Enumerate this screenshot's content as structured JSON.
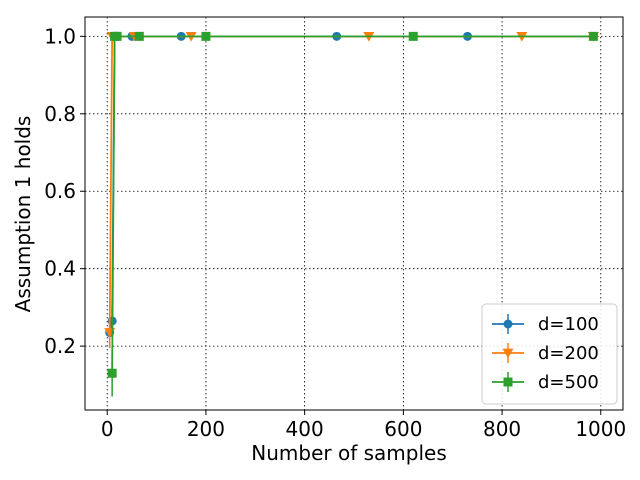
{
  "chart_data": {
    "type": "line",
    "title": "",
    "xlabel": "Number of samples",
    "ylabel": "Assumption 1 holds",
    "xlim": [
      -45,
      1045
    ],
    "ylim": [
      0.035,
      1.05
    ],
    "xticks": [
      0,
      200,
      400,
      600,
      800,
      1000
    ],
    "xtick_labels": [
      "0",
      "200",
      "400",
      "600",
      "800",
      "1000"
    ],
    "yticks": [
      0.2,
      0.4,
      0.6,
      0.8,
      1.0
    ],
    "ytick_labels": [
      "0.2",
      "0.4",
      "0.6",
      "0.8",
      "1.0"
    ],
    "grid": true,
    "legend_position": "lower-right",
    "series": [
      {
        "name": "d=100",
        "color": "#1f77b4",
        "marker": "circle",
        "x": [
          5,
          10,
          15,
          50,
          150,
          465,
          730,
          985
        ],
        "y": [
          0.235,
          0.265,
          1.0,
          1.0,
          1.0,
          1.0,
          1.0,
          1.0
        ],
        "yerr": [
          0.04,
          0.04,
          0,
          0,
          0,
          0,
          0,
          0
        ]
      },
      {
        "name": "d=200",
        "color": "#ff7f0e",
        "marker": "triangle-down",
        "x": [
          5,
          10,
          15,
          55,
          170,
          530,
          840,
          985
        ],
        "y": [
          0.235,
          1.0,
          1.0,
          1.0,
          1.0,
          1.0,
          1.0,
          1.0
        ],
        "yerr": [
          0.04,
          0,
          0,
          0,
          0,
          0,
          0,
          0
        ]
      },
      {
        "name": "d=500",
        "color": "#2ca02c",
        "marker": "square",
        "x": [
          10,
          15,
          20,
          65,
          200,
          620,
          985
        ],
        "y": [
          0.13,
          1.0,
          1.0,
          1.0,
          1.0,
          1.0,
          1.0
        ],
        "yerr": [
          0.06,
          0,
          0,
          0,
          0,
          0,
          0
        ]
      }
    ]
  }
}
